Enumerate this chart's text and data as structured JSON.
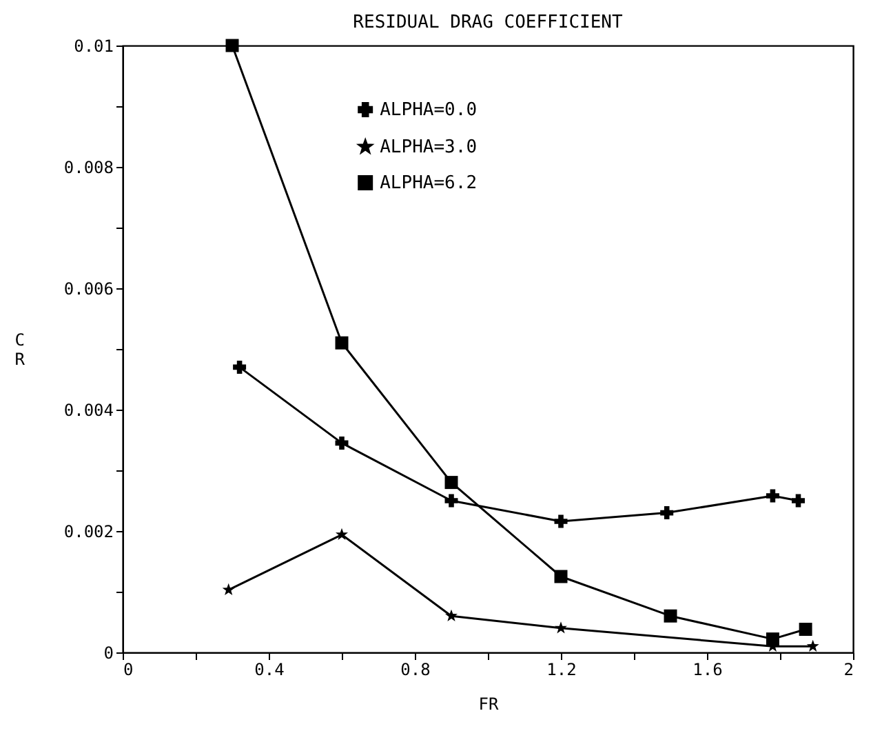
{
  "chart_data": {
    "type": "line",
    "title": "RESIDUAL DRAG COEFFICIENT",
    "xlabel": "FR",
    "ylabel": "CR",
    "series": [
      {
        "name": "ALPHA=0.0",
        "color": "#000000",
        "marker": "cross",
        "x": [
          0.32,
          0.6,
          0.9,
          1.2,
          1.49,
          1.78,
          1.85
        ],
        "values": [
          0.0047,
          0.00345,
          0.0025,
          0.00216,
          0.0023,
          0.00258,
          0.0025
        ]
      },
      {
        "name": "ALPHA=3.0",
        "color": "#000000",
        "marker": "star",
        "x": [
          0.29,
          0.6,
          0.9,
          1.2,
          1.78,
          1.89
        ],
        "values": [
          0.00103,
          0.00194,
          0.0006,
          0.0004,
          0.0001,
          0.0001
        ]
      },
      {
        "name": "ALPHA=6.2",
        "color": "#000000",
        "marker": "square",
        "x": [
          0.3,
          0.6,
          0.9,
          1.2,
          1.5,
          1.78,
          1.87
        ],
        "values": [
          0.01,
          0.0051,
          0.0028,
          0.00125,
          0.0006,
          0.00022,
          0.00038
        ]
      }
    ],
    "xlim": [
      0,
      2
    ],
    "xticks": [
      0,
      {
        "value": 0.2,
        "label": null
      },
      0.4,
      {
        "value": 0.6,
        "label": null
      },
      0.8,
      {
        "value": 1.0,
        "label": null
      },
      1.2,
      {
        "value": 1.4,
        "label": null
      },
      1.6,
      {
        "value": 1.8,
        "label": null
      },
      2
    ],
    "ylim": [
      0,
      0.01
    ],
    "yticks": [
      0,
      {
        "value": 0.001,
        "label": null
      },
      0.002,
      {
        "value": 0.003,
        "label": null
      },
      0.004,
      {
        "value": 0.005,
        "label": null
      },
      0.006,
      {
        "value": 0.007,
        "label": null
      },
      0.008,
      {
        "value": 0.009,
        "label": null
      },
      0.01
    ],
    "legend": "top",
    "grid": false,
    "line_style": "solid"
  }
}
